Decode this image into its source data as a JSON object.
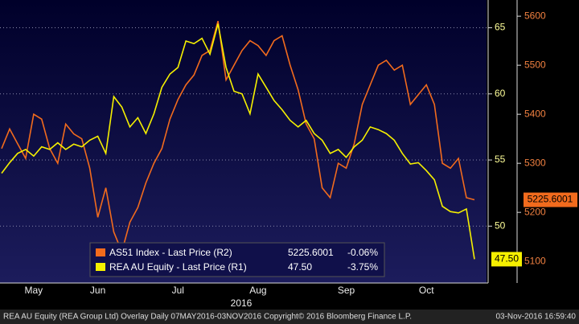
{
  "chart_data": {
    "type": "line",
    "categories": [
      null,
      null,
      null,
      null,
      "May",
      null,
      null,
      null,
      null,
      null,
      null,
      null,
      "Jun",
      null,
      null,
      null,
      null,
      null,
      null,
      null,
      null,
      null,
      "Jul",
      null,
      null,
      null,
      null,
      null,
      null,
      null,
      null,
      null,
      "Aug",
      null,
      null,
      null,
      null,
      null,
      null,
      null,
      null,
      null,
      null,
      "Sep",
      null,
      null,
      null,
      null,
      null,
      null,
      null,
      null,
      null,
      "Oct",
      null,
      null,
      null,
      null,
      null,
      null
    ],
    "x_label": "2016",
    "series": [
      {
        "name": "AS51 Index - Last Price  (R2)",
        "color": "#f26b1d",
        "axis": "y2",
        "last_price": "5225.6001",
        "change": "-0.06%",
        "values": [
          5330,
          5370,
          5340,
          5310,
          5400,
          5390,
          5330,
          5300,
          5380,
          5360,
          5350,
          5290,
          5190,
          5250,
          5160,
          5120,
          5180,
          5210,
          5260,
          5300,
          5330,
          5390,
          5430,
          5460,
          5480,
          5520,
          5530,
          5590,
          5470,
          5500,
          5530,
          5550,
          5540,
          5520,
          5550,
          5560,
          5500,
          5450,
          5380,
          5350,
          5250,
          5230,
          5300,
          5290,
          5340,
          5420,
          5460,
          5500,
          5510,
          5490,
          5500,
          5420,
          5440,
          5460,
          5420,
          5300,
          5290,
          5310,
          5230,
          5225.6001
        ]
      },
      {
        "name": "REA AU Equity - Last Price  (R1)",
        "color": "#f5f000",
        "axis": "y",
        "last_price": "47.50",
        "change": "-3.75%",
        "values": [
          54.0,
          54.8,
          55.5,
          55.8,
          55.3,
          56.0,
          55.8,
          56.3,
          55.8,
          56.2,
          56.0,
          56.5,
          56.8,
          55.5,
          59.8,
          59.0,
          57.5,
          58.2,
          57.0,
          58.5,
          60.5,
          61.5,
          62.0,
          64.0,
          63.8,
          64.2,
          63.0,
          65.3,
          62.0,
          60.2,
          60.0,
          58.5,
          61.5,
          60.5,
          59.5,
          58.8,
          58.0,
          57.5,
          58.0,
          57.0,
          56.5,
          55.5,
          55.8,
          55.2,
          56.0,
          56.5,
          57.5,
          57.3,
          57.0,
          56.5,
          55.5,
          54.7,
          54.8,
          54.2,
          53.5,
          51.5,
          51.1,
          51.0,
          51.3,
          47.5
        ]
      }
    ],
    "ylim": [
      45.7,
      67.1
    ],
    "yticks": [
      50,
      55,
      60,
      65
    ],
    "y2lim": [
      5056,
      5633
    ],
    "y2ticks": [
      5100,
      5200,
      5300,
      5400,
      5500,
      5600
    ],
    "grid": true,
    "footer": {
      "left": "REA AU Equity (REA Group Ltd) Overlay  Daily 07MAY2016-03NOV2016",
      "center": "Copyright© 2016 Bloomberg Finance L.P.",
      "right": "03-Nov-2016 16:59:40"
    }
  }
}
